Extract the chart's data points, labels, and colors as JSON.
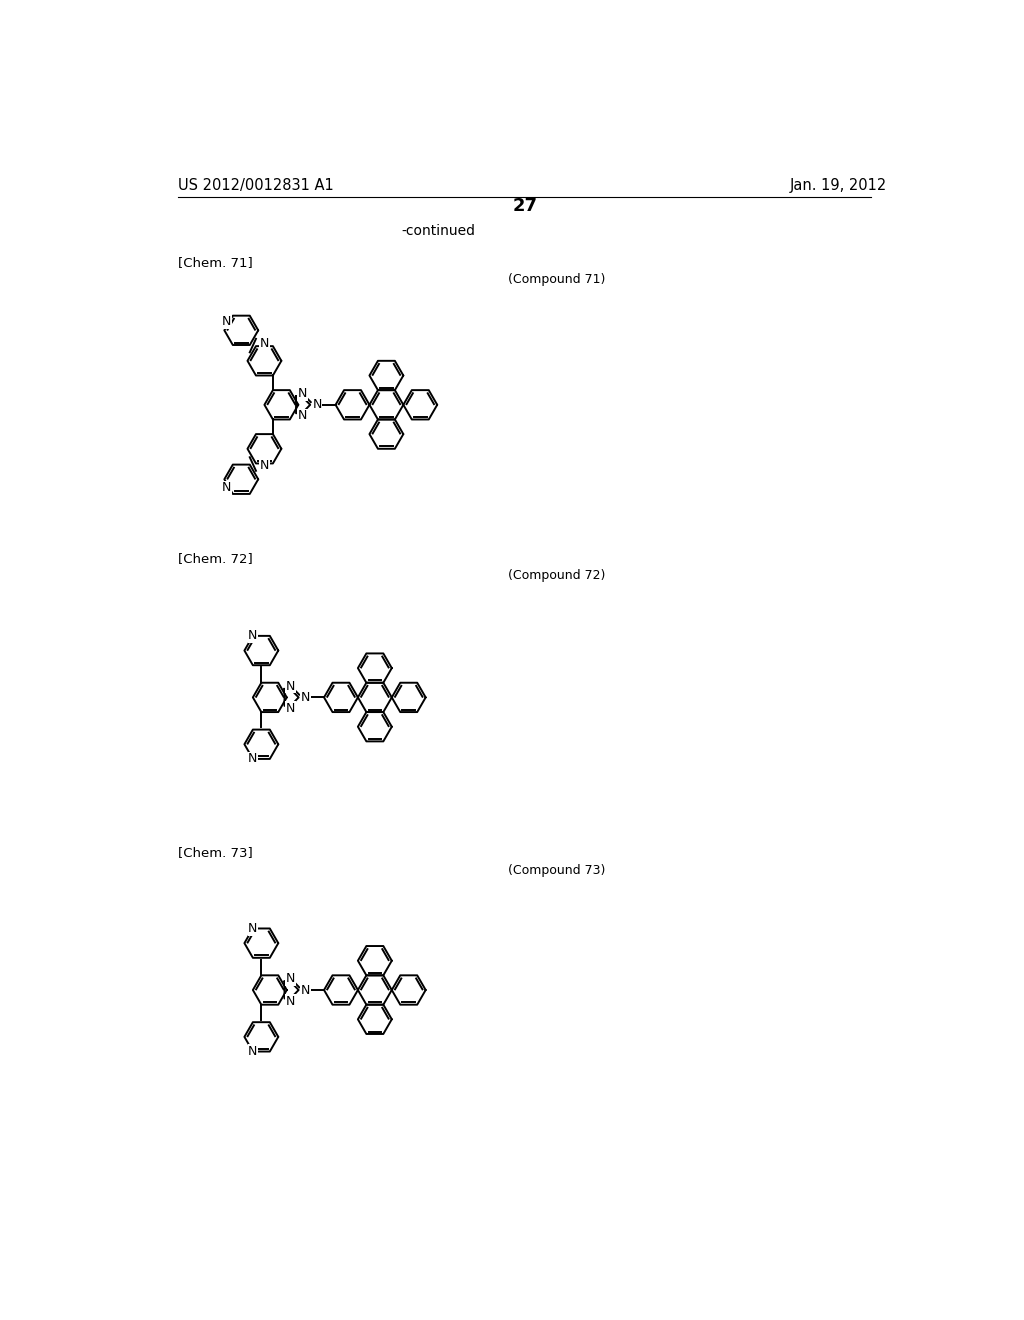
{
  "bg_color": "#ffffff",
  "page_number": "27",
  "patent_number": "US 2012/0012831 A1",
  "patent_date": "Jan. 19, 2012",
  "continued_text": "-continued",
  "label_71": "[Chem. 71]",
  "label_72": "[Chem. 72]",
  "label_73": "[Chem. 73]",
  "compound_71": "(Compound 71)",
  "compound_72": "(Compound 72)",
  "compound_73": "(Compound 73)",
  "lw": 1.4,
  "r": 22
}
